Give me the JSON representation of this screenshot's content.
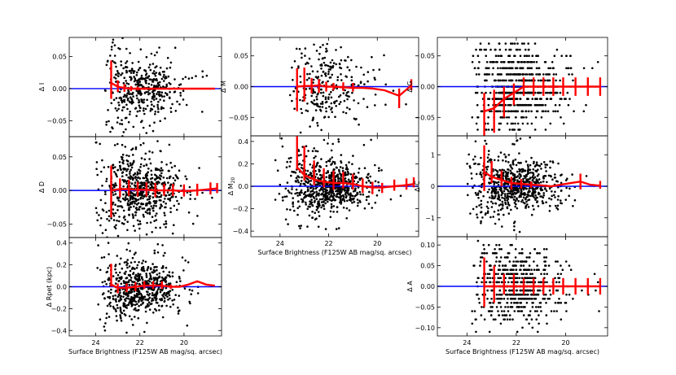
{
  "figure": {
    "xlabel": "Surface Brightness (F125W AB mag/sq. arcsec)",
    "colors": {
      "points": "#000000",
      "zero_line": "#0000ff",
      "median": "#ff0000"
    }
  },
  "chart_data": [
    {
      "type": "scatter",
      "id": "delta-I",
      "ylabel": "Δ I",
      "xlim": [
        25.2,
        18.3
      ],
      "ylim": [
        -0.075,
        0.08
      ],
      "yticks": [
        -0.05,
        0.0,
        0.05
      ],
      "ytick_labels": [
        "−0.05",
        "0.00",
        "0.05"
      ],
      "xticks": [],
      "xtick_labels": [],
      "show_xlabel": false,
      "scatter": {
        "x_range": [
          18.5,
          23.6
        ],
        "center": 22.0,
        "y_spread": 0.022,
        "y_clip": [
          -0.075,
          0.08
        ],
        "n": 420,
        "seed": 11,
        "discrete_step": 0
      },
      "median_line": {
        "x": [
          23.3,
          23.0,
          22.7,
          22.4,
          22.1,
          21.8,
          21.2,
          20.6,
          20.0,
          19.4,
          18.6
        ],
        "y": [
          0.009,
          0.003,
          0.001,
          0.0,
          0.0,
          0.0,
          0.0,
          0.0,
          0.0,
          0.0,
          0.0
        ]
      },
      "error_bars": [
        {
          "x": 23.3,
          "lo": -0.025,
          "hi": 0.035
        },
        {
          "x": 23.0,
          "lo": -0.008,
          "hi": 0.01
        },
        {
          "x": 22.7,
          "lo": -0.006,
          "hi": 0.006
        },
        {
          "x": 22.4,
          "lo": -0.004,
          "hi": 0.004
        },
        {
          "x": 22.1,
          "lo": -0.003,
          "hi": 0.003
        },
        {
          "x": 21.8,
          "lo": -0.002,
          "hi": 0.002
        }
      ]
    },
    {
      "type": "scatter",
      "id": "delta-D",
      "ylabel": "Δ D",
      "xlim": [
        25.2,
        18.3
      ],
      "ylim": [
        -0.07,
        0.08
      ],
      "yticks": [
        -0.05,
        0.0,
        0.05
      ],
      "ytick_labels": [
        "−0.05",
        "0.00",
        "0.05"
      ],
      "xticks": [],
      "xtick_labels": [],
      "show_xlabel": false,
      "scatter": {
        "x_range": [
          18.6,
          24.0
        ],
        "center": 22.0,
        "y_spread": 0.022,
        "y_clip": [
          -0.07,
          0.078
        ],
        "n": 620,
        "seed": 23,
        "discrete_step": 0
      },
      "median_line": {
        "x": [
          23.3,
          22.9,
          22.5,
          22.1,
          21.7,
          21.3,
          20.9,
          20.5,
          20.0,
          19.4,
          18.8,
          18.5
        ],
        "y": [
          0.0,
          0.002,
          0.002,
          0.001,
          0.001,
          0.0,
          0.0,
          0.0,
          -0.001,
          0.0,
          0.002,
          0.003
        ]
      },
      "error_bars": [
        {
          "x": 23.3,
          "lo": -0.04,
          "hi": 0.037
        },
        {
          "x": 22.9,
          "lo": -0.012,
          "hi": 0.016
        },
        {
          "x": 22.5,
          "lo": -0.01,
          "hi": 0.014
        },
        {
          "x": 22.1,
          "lo": -0.01,
          "hi": 0.012
        },
        {
          "x": 21.7,
          "lo": -0.01,
          "hi": 0.011
        },
        {
          "x": 21.3,
          "lo": -0.01,
          "hi": 0.011
        },
        {
          "x": 20.9,
          "lo": -0.008,
          "hi": 0.01
        },
        {
          "x": 20.5,
          "lo": -0.008,
          "hi": 0.01
        },
        {
          "x": 20.0,
          "lo": -0.008,
          "hi": 0.01
        },
        {
          "x": 19.4,
          "lo": -0.008,
          "hi": 0.01
        },
        {
          "x": 18.8,
          "lo": -0.008,
          "hi": 0.01
        },
        {
          "x": 18.5,
          "lo": -0.007,
          "hi": 0.008
        }
      ]
    },
    {
      "type": "scatter",
      "id": "delta-rpet",
      "ylabel": "Δ Rpet (kpc)",
      "xlim": [
        25.2,
        18.3
      ],
      "ylim": [
        -0.45,
        0.45
      ],
      "yticks": [
        -0.4,
        -0.2,
        0.0,
        0.2,
        0.4
      ],
      "ytick_labels": [
        "−0.4",
        "−0.2",
        "0.0",
        "0.2",
        "0.4"
      ],
      "xticks": [
        24,
        22,
        20
      ],
      "xtick_labels": [
        "24",
        "22",
        "20"
      ],
      "show_xlabel": true,
      "scatter": {
        "x_range": [
          18.6,
          24.0
        ],
        "center": 22.0,
        "y_spread": 0.1,
        "y_clip": [
          -0.43,
          0.42
        ],
        "n": 620,
        "seed": 37,
        "discrete_step": 0
      },
      "median_line": {
        "x": [
          23.3,
          23.0,
          22.6,
          22.2,
          21.8,
          21.4,
          21.0,
          20.6,
          20.2,
          19.8,
          19.4,
          19.0,
          18.6
        ],
        "y": [
          0.02,
          -0.01,
          -0.01,
          0.0,
          0.01,
          0.01,
          0.01,
          0.0,
          0.0,
          0.02,
          0.05,
          0.02,
          0.01
        ]
      },
      "error_bars": [
        {
          "x": 23.3,
          "lo": -0.02,
          "hi": 0.19
        },
        {
          "x": 23.0,
          "lo": -0.05,
          "hi": 0.04
        },
        {
          "x": 22.6,
          "lo": -0.04,
          "hi": 0.04
        },
        {
          "x": 22.2,
          "lo": -0.04,
          "hi": 0.04
        },
        {
          "x": 21.8,
          "lo": -0.03,
          "hi": 0.04
        },
        {
          "x": 21.4,
          "lo": -0.03,
          "hi": 0.04
        },
        {
          "x": 21.0,
          "lo": -0.03,
          "hi": 0.04
        },
        {
          "x": 20.6,
          "lo": -0.02,
          "hi": 0.02
        }
      ]
    },
    {
      "type": "scatter",
      "id": "delta-M",
      "ylabel": "Δ M",
      "xlim": [
        25.2,
        18.3
      ],
      "ylim": [
        -0.08,
        0.08
      ],
      "yticks": [
        -0.05,
        0.0,
        0.05
      ],
      "ytick_labels": [
        "−0.05",
        "0.00",
        "0.05"
      ],
      "xticks": [],
      "xtick_labels": [],
      "show_xlabel": false,
      "scatter": {
        "x_range": [
          18.6,
          23.6
        ],
        "center": 22.2,
        "y_spread": 0.03,
        "y_clip": [
          -0.078,
          0.078
        ],
        "n": 260,
        "seed": 41,
        "discrete_step": 0
      },
      "median_line": {
        "x": [
          23.3,
          23.0,
          22.7,
          22.4,
          22.1,
          21.8,
          21.4,
          21.0,
          20.6,
          20.2,
          19.7,
          19.1,
          18.6
        ],
        "y": [
          0.0,
          0.001,
          0.001,
          0.002,
          0.0,
          0.0,
          -0.001,
          -0.002,
          -0.002,
          -0.003,
          -0.006,
          -0.015,
          0.002
        ]
      },
      "error_bars": [
        {
          "x": 23.3,
          "lo": -0.04,
          "hi": 0.03
        },
        {
          "x": 23.0,
          "lo": -0.025,
          "hi": 0.03
        },
        {
          "x": 22.7,
          "lo": -0.012,
          "hi": 0.013
        },
        {
          "x": 22.4,
          "lo": -0.012,
          "hi": 0.01
        },
        {
          "x": 22.1,
          "lo": -0.008,
          "hi": 0.008
        },
        {
          "x": 21.8,
          "lo": -0.006,
          "hi": 0.006
        },
        {
          "x": 21.4,
          "lo": -0.006,
          "hi": 0.008
        },
        {
          "x": 21.0,
          "lo": -0.006,
          "hi": 0.008
        },
        {
          "x": 19.1,
          "lo": -0.02,
          "hi": 0.012
        },
        {
          "x": 18.6,
          "lo": -0.008,
          "hi": 0.01
        }
      ]
    },
    {
      "type": "scatter",
      "id": "delta-M20",
      "ylabel": "Δ M",
      "ylabel_sub": "20",
      "xlim": [
        25.2,
        18.3
      ],
      "ylim": [
        -0.45,
        0.45
      ],
      "yticks": [
        -0.4,
        -0.2,
        0.0,
        0.2,
        0.4
      ],
      "ytick_labels": [
        "−0.4",
        "−0.2",
        "0.0",
        "0.2",
        "0.4"
      ],
      "xticks": [
        24,
        22,
        20
      ],
      "xtick_labels": [
        "24",
        "22",
        "20"
      ],
      "show_xlabel": true,
      "scatter": {
        "x_range": [
          18.6,
          24.2
        ],
        "center": 22.0,
        "y_spread": 0.1,
        "y_clip": [
          -0.43,
          0.43
        ],
        "n": 720,
        "seed": 53,
        "discrete_step": 0
      },
      "median_line": {
        "x": [
          23.3,
          23.0,
          22.6,
          22.2,
          21.8,
          21.4,
          21.0,
          20.6,
          20.2,
          19.8,
          19.3,
          18.8,
          18.5
        ],
        "y": [
          0.17,
          0.1,
          0.06,
          0.04,
          0.03,
          0.03,
          0.02,
          0.0,
          -0.01,
          -0.01,
          0.0,
          0.01,
          0.02
        ]
      },
      "error_bars": [
        {
          "x": 23.3,
          "lo": -0.02,
          "hi": 0.38
        },
        {
          "x": 23.0,
          "lo": -0.05,
          "hi": 0.26
        },
        {
          "x": 22.6,
          "lo": -0.05,
          "hi": 0.17
        },
        {
          "x": 22.2,
          "lo": -0.05,
          "hi": 0.12
        },
        {
          "x": 21.8,
          "lo": -0.06,
          "hi": 0.11
        },
        {
          "x": 21.4,
          "lo": -0.05,
          "hi": 0.1
        },
        {
          "x": 21.0,
          "lo": -0.05,
          "hi": 0.09
        },
        {
          "x": 20.6,
          "lo": -0.06,
          "hi": 0.07
        },
        {
          "x": 20.2,
          "lo": -0.06,
          "hi": 0.05
        },
        {
          "x": 19.8,
          "lo": -0.05,
          "hi": 0.04
        },
        {
          "x": 19.3,
          "lo": -0.04,
          "hi": 0.06
        },
        {
          "x": 18.8,
          "lo": -0.04,
          "hi": 0.06
        },
        {
          "x": 18.5,
          "lo": -0.03,
          "hi": 0.06
        }
      ]
    },
    {
      "type": "scatter",
      "id": "delta-G",
      "ylabel": "Δ G",
      "xlim": [
        25.2,
        18.3
      ],
      "ylim": [
        -0.08,
        0.08
      ],
      "yticks": [
        -0.05,
        0.0,
        0.05
      ],
      "ytick_labels": [
        "−0.05",
        "0.00",
        "0.05"
      ],
      "xticks": [],
      "xtick_labels": [],
      "show_xlabel": false,
      "scatter": {
        "x_range": [
          18.5,
          23.8
        ],
        "center": 22.0,
        "y_spread": 0.03,
        "y_clip": [
          -0.075,
          0.075
        ],
        "n": 700,
        "seed": 67,
        "discrete_step": 0.01
      },
      "median_line": {
        "x": [
          23.3,
          22.9,
          22.5,
          22.1,
          21.7,
          21.3,
          20.9,
          20.5,
          20.1,
          19.6,
          19.1,
          18.6
        ],
        "y": [
          -0.04,
          -0.035,
          -0.02,
          -0.01,
          0.0,
          0.0,
          0.0,
          0.0,
          0.0,
          0.0,
          0.0,
          0.0
        ]
      },
      "error_bars": [
        {
          "x": 23.3,
          "lo": -0.06,
          "hi": 0.03
        },
        {
          "x": 22.9,
          "lo": -0.04,
          "hi": 0.03
        },
        {
          "x": 22.5,
          "lo": -0.03,
          "hi": 0.02
        },
        {
          "x": 22.1,
          "lo": -0.02,
          "hi": 0.015
        },
        {
          "x": 21.7,
          "lo": -0.015,
          "hi": 0.015
        },
        {
          "x": 21.3,
          "lo": -0.015,
          "hi": 0.015
        },
        {
          "x": 20.9,
          "lo": -0.015,
          "hi": 0.015
        },
        {
          "x": 20.5,
          "lo": -0.015,
          "hi": 0.015
        },
        {
          "x": 20.1,
          "lo": -0.015,
          "hi": 0.015
        },
        {
          "x": 19.6,
          "lo": -0.015,
          "hi": 0.015
        },
        {
          "x": 19.1,
          "lo": -0.015,
          "hi": 0.015
        },
        {
          "x": 18.6,
          "lo": -0.015,
          "hi": 0.015
        }
      ]
    },
    {
      "type": "scatter",
      "id": "delta-C",
      "ylabel": "Δ C",
      "xlim": [
        25.2,
        18.3
      ],
      "ylim": [
        -1.6,
        1.6
      ],
      "yticks": [
        -1,
        0,
        1
      ],
      "ytick_labels": [
        "−1",
        "0",
        "1"
      ],
      "xticks": [],
      "xtick_labels": [],
      "show_xlabel": false,
      "scatter": {
        "x_range": [
          18.6,
          24.0
        ],
        "center": 22.0,
        "y_spread": 0.35,
        "y_clip": [
          -1.5,
          1.55
        ],
        "n": 700,
        "seed": 79,
        "discrete_step": 0
      },
      "median_line": {
        "x": [
          23.3,
          23.0,
          22.6,
          22.2,
          21.8,
          21.4,
          21.0,
          20.6,
          20.2,
          19.8,
          19.4,
          19.0,
          18.6
        ],
        "y": [
          0.45,
          0.3,
          0.2,
          0.1,
          0.08,
          0.05,
          0.03,
          0.0,
          0.05,
          0.1,
          0.15,
          0.05,
          0.02
        ]
      },
      "error_bars": [
        {
          "x": 23.3,
          "lo": -0.6,
          "hi": 0.85
        },
        {
          "x": 23.0,
          "lo": -0.2,
          "hi": 0.5
        },
        {
          "x": 22.6,
          "lo": -0.2,
          "hi": 0.3
        },
        {
          "x": 22.2,
          "lo": -0.2,
          "hi": 0.2
        },
        {
          "x": 21.8,
          "lo": -0.15,
          "hi": 0.15
        },
        {
          "x": 21.4,
          "lo": -0.1,
          "hi": 0.1
        },
        {
          "x": 19.4,
          "lo": -0.25,
          "hi": 0.25
        },
        {
          "x": 18.6,
          "lo": -0.1,
          "hi": 0.15
        }
      ]
    },
    {
      "type": "scatter",
      "id": "delta-A",
      "ylabel": "Δ A",
      "xlim": [
        25.2,
        18.3
      ],
      "ylim": [
        -0.12,
        0.12
      ],
      "yticks": [
        -0.1,
        -0.05,
        0.0,
        0.05,
        0.1
      ],
      "ytick_labels": [
        "−0.10",
        "−0.05",
        "0.00",
        "0.05",
        "0.10"
      ],
      "xticks": [
        24,
        22,
        20
      ],
      "xtick_labels": [
        "24",
        "22",
        "20"
      ],
      "show_xlabel": true,
      "scatter": {
        "x_range": [
          18.6,
          23.8
        ],
        "center": 22.0,
        "y_spread": 0.04,
        "y_clip": [
          -0.115,
          0.115
        ],
        "n": 620,
        "seed": 97,
        "discrete_step": 0.01
      },
      "median_line": {
        "x": [
          23.3,
          22.9,
          22.5,
          22.1,
          21.7,
          21.3,
          20.9,
          20.5,
          20.1,
          19.6,
          19.1,
          18.6
        ],
        "y": [
          0.0,
          0.0,
          0.0,
          0.0,
          0.0,
          0.0,
          0.0,
          0.0,
          0.0,
          0.0,
          0.0,
          0.0
        ]
      },
      "error_bars": [
        {
          "x": 23.3,
          "lo": -0.05,
          "hi": 0.07
        },
        {
          "x": 22.9,
          "lo": -0.04,
          "hi": 0.05
        },
        {
          "x": 22.5,
          "lo": -0.02,
          "hi": 0.03
        },
        {
          "x": 22.1,
          "lo": -0.02,
          "hi": 0.03
        },
        {
          "x": 21.7,
          "lo": -0.02,
          "hi": 0.02
        },
        {
          "x": 21.3,
          "lo": -0.02,
          "hi": 0.02
        },
        {
          "x": 20.9,
          "lo": -0.02,
          "hi": 0.02
        },
        {
          "x": 20.5,
          "lo": -0.02,
          "hi": 0.02
        },
        {
          "x": 20.1,
          "lo": -0.02,
          "hi": 0.02
        },
        {
          "x": 19.6,
          "lo": -0.02,
          "hi": 0.02
        },
        {
          "x": 19.1,
          "lo": -0.02,
          "hi": 0.02
        },
        {
          "x": 18.6,
          "lo": -0.02,
          "hi": 0.02
        }
      ]
    }
  ]
}
